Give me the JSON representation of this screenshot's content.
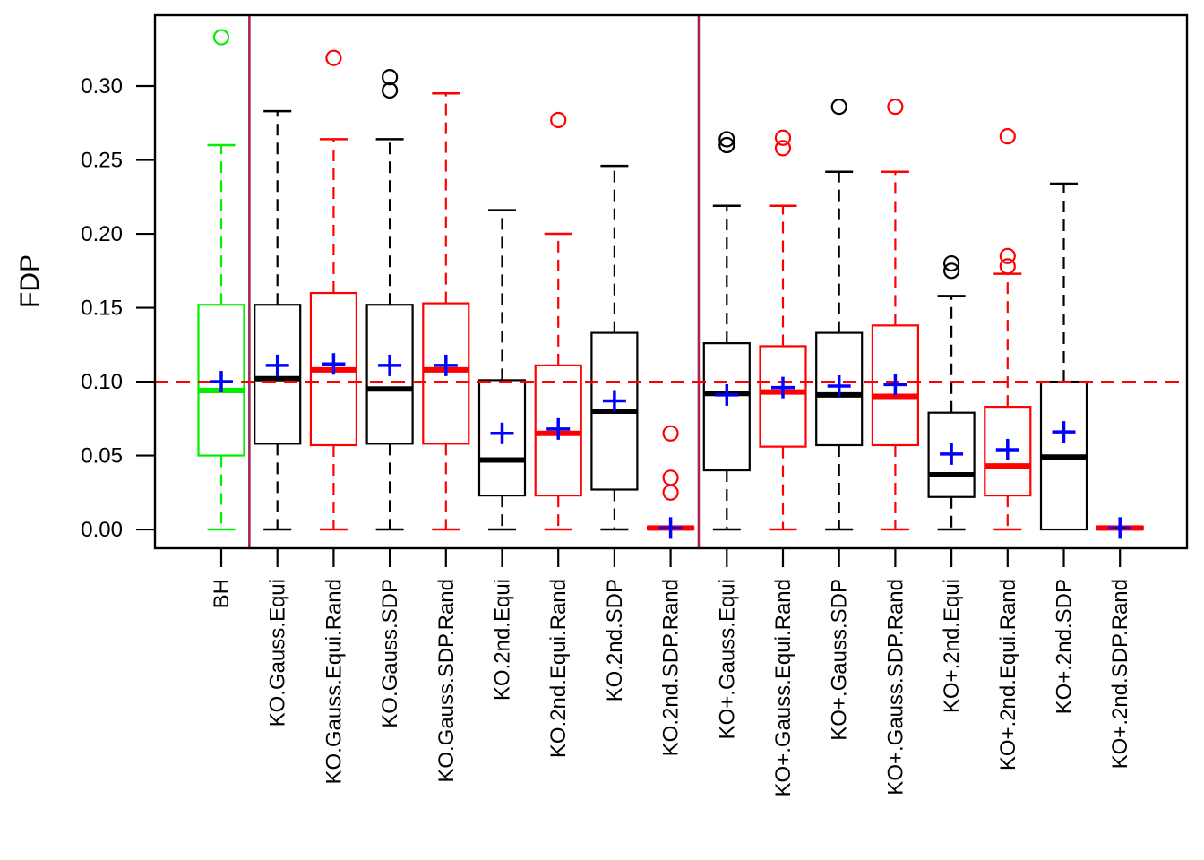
{
  "page": {
    "background": "#ffffff"
  },
  "chart_data": {
    "type": "boxplot",
    "title": "",
    "xlabel": "",
    "ylabel": "FDP",
    "ylim": [
      -0.0127,
      0.3479
    ],
    "grid": false,
    "yticks": [
      {
        "value": 0.0,
        "label": "0.00"
      },
      {
        "value": 0.05,
        "label": "0.05"
      },
      {
        "value": 0.1,
        "label": "0.10"
      },
      {
        "value": 0.15,
        "label": "0.15"
      },
      {
        "value": 0.2,
        "label": "0.20"
      },
      {
        "value": 0.25,
        "label": "0.25"
      },
      {
        "value": 0.3,
        "label": "0.30"
      }
    ],
    "reference_line": {
      "value": 0.1,
      "color": "#ff0000",
      "style": "dashed"
    },
    "separators": {
      "positions": [
        1.5,
        9.5
      ],
      "color": "#a8235a"
    },
    "mean_marker": {
      "shape": "plus",
      "color": "#0000ff"
    },
    "series": [
      {
        "label": "BH",
        "color": "#00ee00",
        "low": 0.0,
        "q1": 0.05,
        "median": 0.094,
        "q3": 0.152,
        "high": 0.26,
        "mean": 0.1,
        "outliers": [
          0.333
        ]
      },
      {
        "label": "KO.Gauss.Equi",
        "color": "#000000",
        "low": 0.0,
        "q1": 0.058,
        "median": 0.102,
        "q3": 0.152,
        "high": 0.283,
        "mean": 0.111,
        "outliers": []
      },
      {
        "label": "KO.Gauss.Equi.Rand",
        "color": "#ff0000",
        "low": 0.0,
        "q1": 0.057,
        "median": 0.108,
        "q3": 0.16,
        "high": 0.264,
        "mean": 0.112,
        "outliers": [
          0.319
        ]
      },
      {
        "label": "KO.Gauss.SDP",
        "color": "#000000",
        "low": 0.0,
        "q1": 0.058,
        "median": 0.095,
        "q3": 0.152,
        "high": 0.264,
        "mean": 0.111,
        "outliers": [
          0.306,
          0.297
        ]
      },
      {
        "label": "KO.Gauss.SDP.Rand",
        "color": "#ff0000",
        "low": 0.0,
        "q1": 0.058,
        "median": 0.108,
        "q3": 0.153,
        "high": 0.295,
        "mean": 0.111,
        "outliers": []
      },
      {
        "label": "KO.2nd.Equi",
        "color": "#000000",
        "low": 0.0,
        "q1": 0.023,
        "median": 0.047,
        "q3": 0.101,
        "high": 0.216,
        "mean": 0.065,
        "outliers": []
      },
      {
        "label": "KO.2nd.Equi.Rand",
        "color": "#ff0000",
        "low": 0.0,
        "q1": 0.023,
        "median": 0.065,
        "q3": 0.111,
        "high": 0.2,
        "mean": 0.068,
        "outliers": [
          0.277
        ]
      },
      {
        "label": "KO.2nd.SDP",
        "color": "#000000",
        "low": 0.0,
        "q1": 0.027,
        "median": 0.08,
        "q3": 0.133,
        "high": 0.246,
        "mean": 0.087,
        "outliers": []
      },
      {
        "label": "KO.2nd.SDP.Rand",
        "color": "#ff0000",
        "low": 0.0,
        "q1": 0.0,
        "median": 0.001,
        "q3": 0.002,
        "high": 0.002,
        "mean": 0.001,
        "outliers": [
          0.065,
          0.035,
          0.025
        ]
      },
      {
        "label": "KO+.Gauss.Equi",
        "color": "#000000",
        "low": 0.0,
        "q1": 0.04,
        "median": 0.092,
        "q3": 0.126,
        "high": 0.219,
        "mean": 0.091,
        "outliers": [
          0.264,
          0.26
        ]
      },
      {
        "label": "KO+.Gauss.Equi.Rand",
        "color": "#ff0000",
        "low": 0.0,
        "q1": 0.056,
        "median": 0.093,
        "q3": 0.124,
        "high": 0.219,
        "mean": 0.096,
        "outliers": [
          0.265,
          0.258
        ]
      },
      {
        "label": "KO+.Gauss.SDP",
        "color": "#000000",
        "low": 0.0,
        "q1": 0.057,
        "median": 0.091,
        "q3": 0.133,
        "high": 0.242,
        "mean": 0.097,
        "outliers": [
          0.286
        ]
      },
      {
        "label": "KO+.Gauss.SDP.Rand",
        "color": "#ff0000",
        "low": 0.0,
        "q1": 0.057,
        "median": 0.09,
        "q3": 0.138,
        "high": 0.242,
        "mean": 0.098,
        "outliers": [
          0.286
        ]
      },
      {
        "label": "KO+.2nd.Equi",
        "color": "#000000",
        "low": 0.0,
        "q1": 0.022,
        "median": 0.037,
        "q3": 0.079,
        "high": 0.158,
        "mean": 0.051,
        "outliers": [
          0.18,
          0.175
        ]
      },
      {
        "label": "KO+.2nd.Equi.Rand",
        "color": "#ff0000",
        "low": 0.0,
        "q1": 0.023,
        "median": 0.043,
        "q3": 0.083,
        "high": 0.173,
        "mean": 0.054,
        "outliers": [
          0.266,
          0.185,
          0.178
        ]
      },
      {
        "label": "KO+.2nd.SDP",
        "color": "#000000",
        "low": 0.0,
        "q1": 0.0,
        "median": 0.049,
        "q3": 0.1,
        "high": 0.234,
        "mean": 0.066,
        "outliers": []
      },
      {
        "label": "KO+.2nd.SDP.Rand",
        "color": "#ff0000",
        "low": 0.0,
        "q1": 0.0,
        "median": 0.001,
        "q3": 0.002,
        "high": 0.002,
        "mean": 0.001,
        "outliers": []
      }
    ]
  }
}
